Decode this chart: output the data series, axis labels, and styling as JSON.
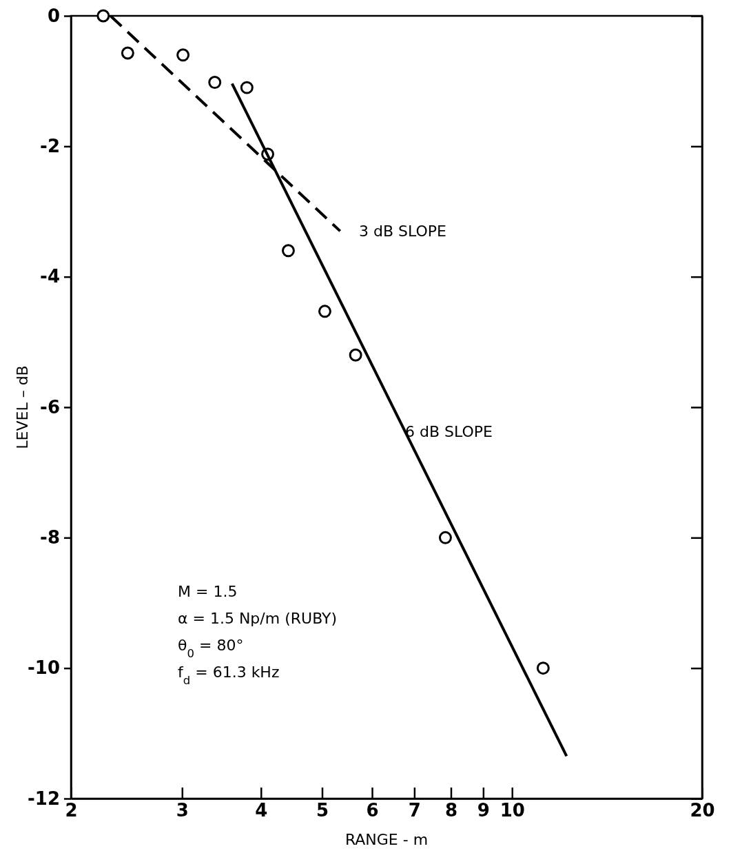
{
  "chart_data": {
    "type": "scatter",
    "xlabel": "RANGE - m",
    "ylabel": "LEVEL – dB",
    "log": "x",
    "xlim": [
      2,
      20
    ],
    "ylim": [
      -12,
      0
    ],
    "xticks": [
      2,
      3,
      4,
      5,
      6,
      7,
      8,
      9,
      10,
      20
    ],
    "yticks": [
      -12,
      -10,
      -8,
      -6,
      -4,
      -2,
      0
    ],
    "grid": false,
    "series": [
      {
        "color": "#000000",
        "marker": "circle",
        "x": [
          2.25,
          2.46,
          3.01,
          3.38,
          3.8,
          4.1,
          4.42,
          5.05,
          5.65,
          7.84,
          11.2
        ],
        "values": [
          0,
          -0.57,
          -0.6,
          -1.02,
          -1.1,
          -2.12,
          -3.6,
          -4.53,
          -5.2,
          -8.0,
          -10.0
        ]
      },
      {
        "type": "line",
        "color": "#000000",
        "line_style": "dashed",
        "marker": "none",
        "x": [
          2.31,
          5.34
        ],
        "values": [
          0,
          -3.3
        ]
      },
      {
        "type": "line",
        "color": "#000000",
        "line_style": "solid",
        "marker": "none",
        "x": [
          3.6,
          12.2
        ],
        "values": [
          -1.04,
          -11.35
        ]
      }
    ],
    "annotations": [
      "3 dB SLOPE",
      "6 dB SLOPE",
      "M = 1.5",
      "α = 1.5 Np/m (RUBY)",
      "θ$_{0}$ = 80°",
      "f$_{d}$ = 61.3 kHz"
    ]
  }
}
